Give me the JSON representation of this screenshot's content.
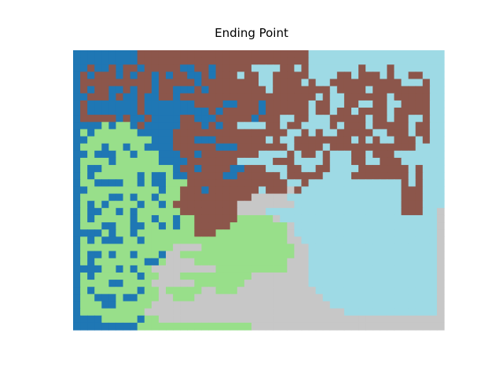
{
  "title": "Ending Point",
  "grid": {
    "cols": 52,
    "rows": 39,
    "colors": {
      "blue": "#1f77b4",
      "brown": "#8c564b",
      "cyan": "#9edae5",
      "green": "#98df8a",
      "gray": "#c7c7c7"
    },
    "colors_list": [
      "blue",
      "brown",
      "cyan",
      "green",
      "gray"
    ],
    "cell_map": [
      "0000000001111111111111111111111112222222222222222222",
      "0000000001111111111111111111111112222222222222222222",
      "0010010110111110011011111222211212222222122212222222",
      "0101110101101011001011121122111112222112111212211222",
      "0111111111101111101111111122111121221111111111222122",
      "0101100101101100010111111112111111112111121111111122",
      "0011101001001101111111111111111111212211111121111122",
      "0100000001000000011110011101111112112211221122111122",
      "0100000001000000000101111101111112112112111121111122",
      "0111110100100001100011111011122112221111121121122122",
      "0000303301000001110101122221121122221211121111121122",
      "0303333330000011111111111111112212122111112211121122",
      "0033333333300011100011111112122111111112121221112122",
      "0333033033000011111100011111112111121111111111112222",
      "0030003303330001101111111122221211212221121112222222",
      "0333303333330000111111122222111222212221122111222222",
      "0300333333333301101111001112221122112222111111121222",
      "0303333330300300111110011111121111122221111111121222",
      "0330000330300333111111111111112212222222222222121222",
      "0033333333330331110111111121114122222222222222111222",
      "0333300303303331111111111444442222222222222222111222",
      "0303033330330311111111144444444222222222222222111222",
      "0300330303333331111111144442222222222222222222111224",
      "0303333303303303311111133333422222222222222222222224",
      "0333003300330303311111333333334222222222222222222224",
      "0000303303333333311133333333334222222222222222222224",
      "0303000330333333333333333333334422222222222222222224",
      "0333333333333344443333333333333442222222222222222224",
      "0300303303330443333333333333333442222222222222222224",
      "0303333333003444433333333333334442222222222222222224",
      "0000330303344444444433333333334442222222222222222224",
      "0303333330334443333333333444444442222222222222222224",
      "0333300333344444433333334444444442222222222222222224",
      "0303333330334333334433344444444444222222222222222224",
      "0330003003334433344444444444444444422222222222222224",
      "0333003333344444444444444444444444442222222222222224",
      "0333333333444444444444444444444444444422222222222224",
      "0000333330334444444444444444444444444444444444444444",
      "0000000003333333333333333444444444444444444444444444"
    ]
  }
}
